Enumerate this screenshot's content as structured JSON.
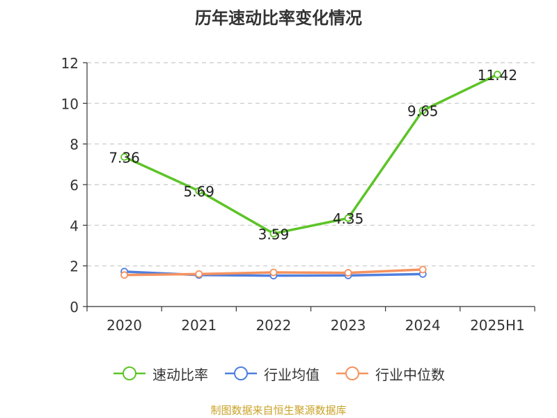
{
  "title": "历年速动比率变化情况",
  "source": "制图数据来自恒生聚源数据库",
  "chart_data": {
    "type": "line",
    "categories": [
      "2020",
      "2021",
      "2022",
      "2023",
      "2024",
      "2025H1"
    ],
    "ylim": [
      0,
      12
    ],
    "yticks": [
      0,
      2,
      4,
      6,
      8,
      10,
      12
    ],
    "grid": true,
    "legend_position": "bottom",
    "series": [
      {
        "name": "速动比率",
        "color": "#5cc427",
        "values": [
          7.36,
          5.69,
          3.59,
          4.35,
          9.65,
          11.42
        ],
        "labels": [
          "7.36",
          "5.69",
          "3.59",
          "4.35",
          "9.65",
          "11.42"
        ]
      },
      {
        "name": "行业均值",
        "color": "#4f7fde",
        "values": [
          1.72,
          1.55,
          1.52,
          1.53,
          1.6,
          null
        ]
      },
      {
        "name": "行业中位数",
        "color": "#f5925f",
        "values": [
          1.55,
          1.6,
          1.68,
          1.66,
          1.82,
          null
        ]
      }
    ]
  }
}
